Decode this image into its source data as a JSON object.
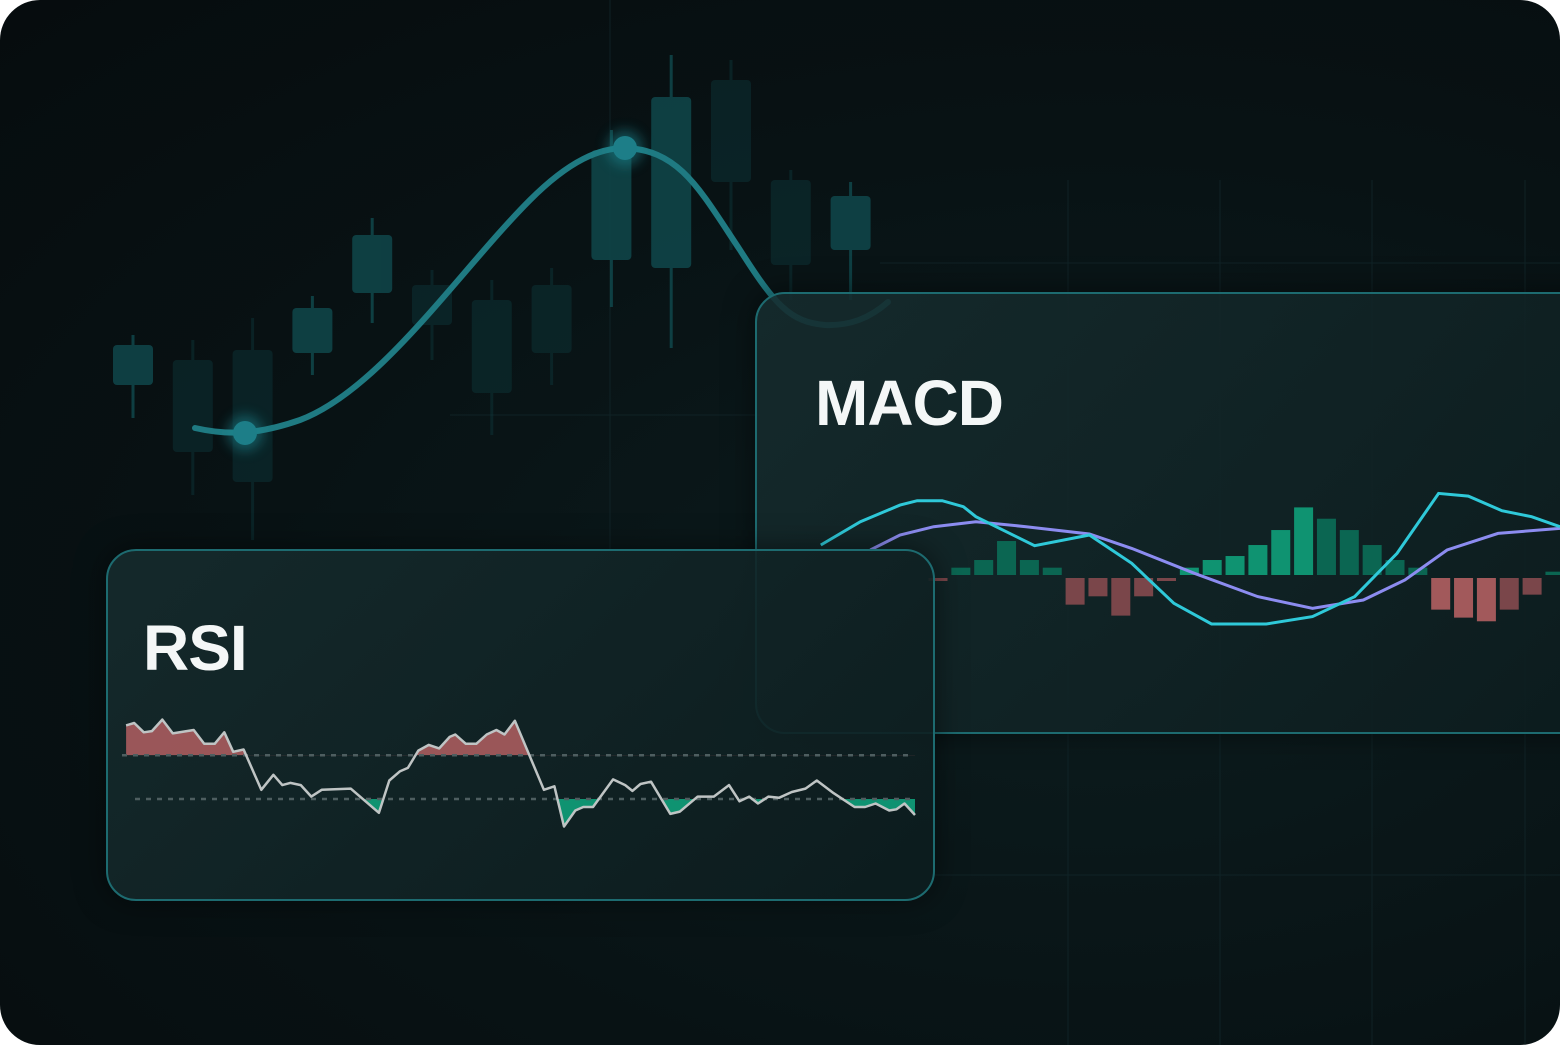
{
  "colors": {
    "background": "#081214",
    "panel_border": "#1d6b70",
    "candle": "#0f4448",
    "trend": "#1f7a82",
    "up": "#0fa07a",
    "up_dark": "#0b6e58",
    "down": "#b35f62",
    "down_dark": "#864a4f",
    "macd_line": "#2fc9d9",
    "signal_line": "#8c8cf0",
    "rsi_line": "#bfc4c4"
  },
  "macd_panel": {
    "title": "MACD"
  },
  "rsi_panel": {
    "title": "RSI"
  },
  "chart_data": [
    {
      "type": "candlestick",
      "candles": [
        {
          "o": 21.5,
          "c": 25.5,
          "h": 26.5,
          "l": 18.2,
          "faded": false
        },
        {
          "o": 14.8,
          "c": 24.0,
          "h": 26.0,
          "l": 10.5,
          "faded": true
        },
        {
          "o": 11.8,
          "c": 25.0,
          "h": 28.2,
          "l": 6.0,
          "faded": true
        },
        {
          "o": 24.7,
          "c": 29.2,
          "h": 30.4,
          "l": 22.5,
          "faded": false
        },
        {
          "o": 30.7,
          "c": 36.5,
          "h": 38.2,
          "l": 27.7,
          "faded": false
        },
        {
          "o": 27.5,
          "c": 31.5,
          "h": 33.0,
          "l": 24.0,
          "faded": true
        },
        {
          "o": 20.7,
          "c": 30.0,
          "h": 32.0,
          "l": 16.5,
          "faded": true
        },
        {
          "o": 24.7,
          "c": 31.5,
          "h": 33.2,
          "l": 21.5,
          "faded": true
        },
        {
          "o": 34.0,
          "c": 45.0,
          "h": 47.0,
          "l": 29.3,
          "faded": false
        },
        {
          "o": 33.2,
          "c": 50.3,
          "h": 54.5,
          "l": 25.2,
          "faded": false
        },
        {
          "o": 41.8,
          "c": 52.0,
          "h": 54.0,
          "l": 35.0,
          "faded": true
        },
        {
          "o": 33.5,
          "c": 42.0,
          "h": 43.0,
          "l": 30.0,
          "faded": true
        },
        {
          "o": 35.0,
          "c": 40.4,
          "h": 41.8,
          "l": 30.0,
          "faded": false
        }
      ]
    },
    {
      "type": "bar+line",
      "name": "MACD",
      "histogram": [
        -0.05,
        0.22,
        0.45,
        1.02,
        0.45,
        0.22,
        -0.8,
        -0.55,
        -1.13,
        -0.55,
        -0.05,
        0.22,
        0.45,
        0.57,
        0.9,
        1.35,
        2.03,
        1.69,
        1.35,
        0.9,
        0.45,
        0.22,
        -0.95,
        -1.19,
        -1.3,
        -0.95,
        -0.5,
        0.1
      ],
      "macd_line": [
        [
          -12,
          0.9
        ],
        [
          -6,
          1.6
        ],
        [
          0,
          2.1
        ],
        [
          2.6,
          2.23
        ],
        [
          6.4,
          2.23
        ],
        [
          9.6,
          2.05
        ],
        [
          11.5,
          1.75
        ],
        [
          20.4,
          0.88
        ],
        [
          28.7,
          1.2
        ],
        [
          35.1,
          0.35
        ],
        [
          41.5,
          -0.85
        ],
        [
          47.2,
          -1.47
        ],
        [
          55.5,
          -1.47
        ],
        [
          62.5,
          -1.25
        ],
        [
          68.9,
          -0.65
        ],
        [
          75.3,
          0.65
        ],
        [
          81.6,
          2.45
        ],
        [
          86.1,
          2.37
        ],
        [
          91.2,
          1.93
        ],
        [
          95.7,
          1.75
        ],
        [
          100,
          1.45
        ]
      ],
      "signal_line": [
        [
          -4.5,
          0.75
        ],
        [
          0,
          1.2
        ],
        [
          5.1,
          1.45
        ],
        [
          11.5,
          1.6
        ],
        [
          19.1,
          1.45
        ],
        [
          28.7,
          1.23
        ],
        [
          35.1,
          0.8
        ],
        [
          44.6,
          0.05
        ],
        [
          54.2,
          -0.65
        ],
        [
          62.5,
          -1.0
        ],
        [
          70.2,
          -0.75
        ],
        [
          76.5,
          -0.15
        ],
        [
          82.9,
          0.75
        ],
        [
          90.6,
          1.25
        ],
        [
          100,
          1.4
        ]
      ]
    },
    {
      "type": "line",
      "name": "RSI",
      "upper_level": 65,
      "lower_level": 27,
      "points": [
        [
          2,
          91
        ],
        [
          3,
          93
        ],
        [
          4.2,
          85
        ],
        [
          5.2,
          86
        ],
        [
          6.5,
          96
        ],
        [
          7.8,
          84
        ],
        [
          10.4,
          87
        ],
        [
          11.7,
          75
        ],
        [
          13,
          75
        ],
        [
          14.2,
          85
        ],
        [
          15.3,
          68
        ],
        [
          16.6,
          70
        ],
        [
          18.8,
          35
        ],
        [
          20.3,
          48
        ],
        [
          21.4,
          39
        ],
        [
          22.4,
          41
        ],
        [
          23.7,
          39
        ],
        [
          25,
          29
        ],
        [
          26.3,
          35
        ],
        [
          29.9,
          36
        ],
        [
          33.4,
          15
        ],
        [
          34.7,
          43
        ],
        [
          36,
          51
        ],
        [
          37,
          54
        ],
        [
          38.3,
          69
        ],
        [
          39.6,
          74
        ],
        [
          40.9,
          71
        ],
        [
          42.2,
          81
        ],
        [
          42.9,
          83
        ],
        [
          44.2,
          75
        ],
        [
          45.5,
          75
        ],
        [
          46.8,
          83
        ],
        [
          48,
          87
        ],
        [
          49,
          83
        ],
        [
          50.3,
          95
        ],
        [
          53.9,
          35
        ],
        [
          55.2,
          38
        ],
        [
          56.4,
          3
        ],
        [
          57.8,
          17
        ],
        [
          58.8,
          20
        ],
        [
          60,
          20
        ],
        [
          62.5,
          44
        ],
        [
          64,
          39
        ],
        [
          64.9,
          34
        ],
        [
          65.9,
          40
        ],
        [
          67.2,
          42
        ],
        [
          69.6,
          14
        ],
        [
          70.8,
          16
        ],
        [
          73,
          29
        ],
        [
          75,
          29
        ],
        [
          76.9,
          39
        ],
        [
          78.2,
          25
        ],
        [
          79.4,
          29
        ],
        [
          80.5,
          23
        ],
        [
          81.8,
          29
        ],
        [
          83.1,
          28
        ],
        [
          84.7,
          33
        ],
        [
          86.4,
          36
        ],
        [
          87.8,
          43
        ],
        [
          89.9,
          32
        ],
        [
          92.5,
          20
        ],
        [
          93.8,
          20
        ],
        [
          95.1,
          23
        ],
        [
          96.8,
          17
        ],
        [
          97.7,
          18
        ],
        [
          98.7,
          23
        ],
        [
          100,
          13
        ]
      ]
    }
  ]
}
